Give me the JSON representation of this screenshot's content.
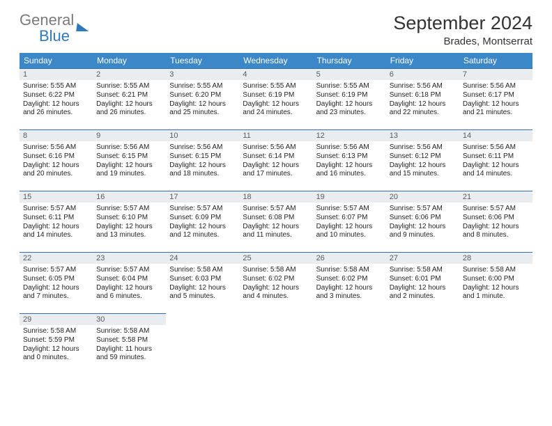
{
  "logo": {
    "word1": "General",
    "word2": "Blue"
  },
  "title": "September 2024",
  "location": "Brades, Montserrat",
  "columns": [
    "Sunday",
    "Monday",
    "Tuesday",
    "Wednesday",
    "Thursday",
    "Friday",
    "Saturday"
  ],
  "colors": {
    "header_bg": "#3b87c8",
    "header_fg": "#ffffff",
    "cell_border": "#2f6ea8",
    "daynum_bg": "#e9edf0",
    "logo_gray": "#7a7a7a",
    "logo_blue": "#2f79bd"
  },
  "days": [
    {
      "n": "1",
      "sr": "5:55 AM",
      "ss": "6:22 PM",
      "dl": "12 hours and 26 minutes."
    },
    {
      "n": "2",
      "sr": "5:55 AM",
      "ss": "6:21 PM",
      "dl": "12 hours and 26 minutes."
    },
    {
      "n": "3",
      "sr": "5:55 AM",
      "ss": "6:20 PM",
      "dl": "12 hours and 25 minutes."
    },
    {
      "n": "4",
      "sr": "5:55 AM",
      "ss": "6:19 PM",
      "dl": "12 hours and 24 minutes."
    },
    {
      "n": "5",
      "sr": "5:55 AM",
      "ss": "6:19 PM",
      "dl": "12 hours and 23 minutes."
    },
    {
      "n": "6",
      "sr": "5:56 AM",
      "ss": "6:18 PM",
      "dl": "12 hours and 22 minutes."
    },
    {
      "n": "7",
      "sr": "5:56 AM",
      "ss": "6:17 PM",
      "dl": "12 hours and 21 minutes."
    },
    {
      "n": "8",
      "sr": "5:56 AM",
      "ss": "6:16 PM",
      "dl": "12 hours and 20 minutes."
    },
    {
      "n": "9",
      "sr": "5:56 AM",
      "ss": "6:15 PM",
      "dl": "12 hours and 19 minutes."
    },
    {
      "n": "10",
      "sr": "5:56 AM",
      "ss": "6:15 PM",
      "dl": "12 hours and 18 minutes."
    },
    {
      "n": "11",
      "sr": "5:56 AM",
      "ss": "6:14 PM",
      "dl": "12 hours and 17 minutes."
    },
    {
      "n": "12",
      "sr": "5:56 AM",
      "ss": "6:13 PM",
      "dl": "12 hours and 16 minutes."
    },
    {
      "n": "13",
      "sr": "5:56 AM",
      "ss": "6:12 PM",
      "dl": "12 hours and 15 minutes."
    },
    {
      "n": "14",
      "sr": "5:56 AM",
      "ss": "6:11 PM",
      "dl": "12 hours and 14 minutes."
    },
    {
      "n": "15",
      "sr": "5:57 AM",
      "ss": "6:11 PM",
      "dl": "12 hours and 14 minutes."
    },
    {
      "n": "16",
      "sr": "5:57 AM",
      "ss": "6:10 PM",
      "dl": "12 hours and 13 minutes."
    },
    {
      "n": "17",
      "sr": "5:57 AM",
      "ss": "6:09 PM",
      "dl": "12 hours and 12 minutes."
    },
    {
      "n": "18",
      "sr": "5:57 AM",
      "ss": "6:08 PM",
      "dl": "12 hours and 11 minutes."
    },
    {
      "n": "19",
      "sr": "5:57 AM",
      "ss": "6:07 PM",
      "dl": "12 hours and 10 minutes."
    },
    {
      "n": "20",
      "sr": "5:57 AM",
      "ss": "6:06 PM",
      "dl": "12 hours and 9 minutes."
    },
    {
      "n": "21",
      "sr": "5:57 AM",
      "ss": "6:06 PM",
      "dl": "12 hours and 8 minutes."
    },
    {
      "n": "22",
      "sr": "5:57 AM",
      "ss": "6:05 PM",
      "dl": "12 hours and 7 minutes."
    },
    {
      "n": "23",
      "sr": "5:57 AM",
      "ss": "6:04 PM",
      "dl": "12 hours and 6 minutes."
    },
    {
      "n": "24",
      "sr": "5:58 AM",
      "ss": "6:03 PM",
      "dl": "12 hours and 5 minutes."
    },
    {
      "n": "25",
      "sr": "5:58 AM",
      "ss": "6:02 PM",
      "dl": "12 hours and 4 minutes."
    },
    {
      "n": "26",
      "sr": "5:58 AM",
      "ss": "6:02 PM",
      "dl": "12 hours and 3 minutes."
    },
    {
      "n": "27",
      "sr": "5:58 AM",
      "ss": "6:01 PM",
      "dl": "12 hours and 2 minutes."
    },
    {
      "n": "28",
      "sr": "5:58 AM",
      "ss": "6:00 PM",
      "dl": "12 hours and 1 minute."
    },
    {
      "n": "29",
      "sr": "5:58 AM",
      "ss": "5:59 PM",
      "dl": "12 hours and 0 minutes."
    },
    {
      "n": "30",
      "sr": "5:58 AM",
      "ss": "5:58 PM",
      "dl": "11 hours and 59 minutes."
    }
  ],
  "labels": {
    "sunrise": "Sunrise: ",
    "sunset": "Sunset: ",
    "daylight": "Daylight: "
  }
}
